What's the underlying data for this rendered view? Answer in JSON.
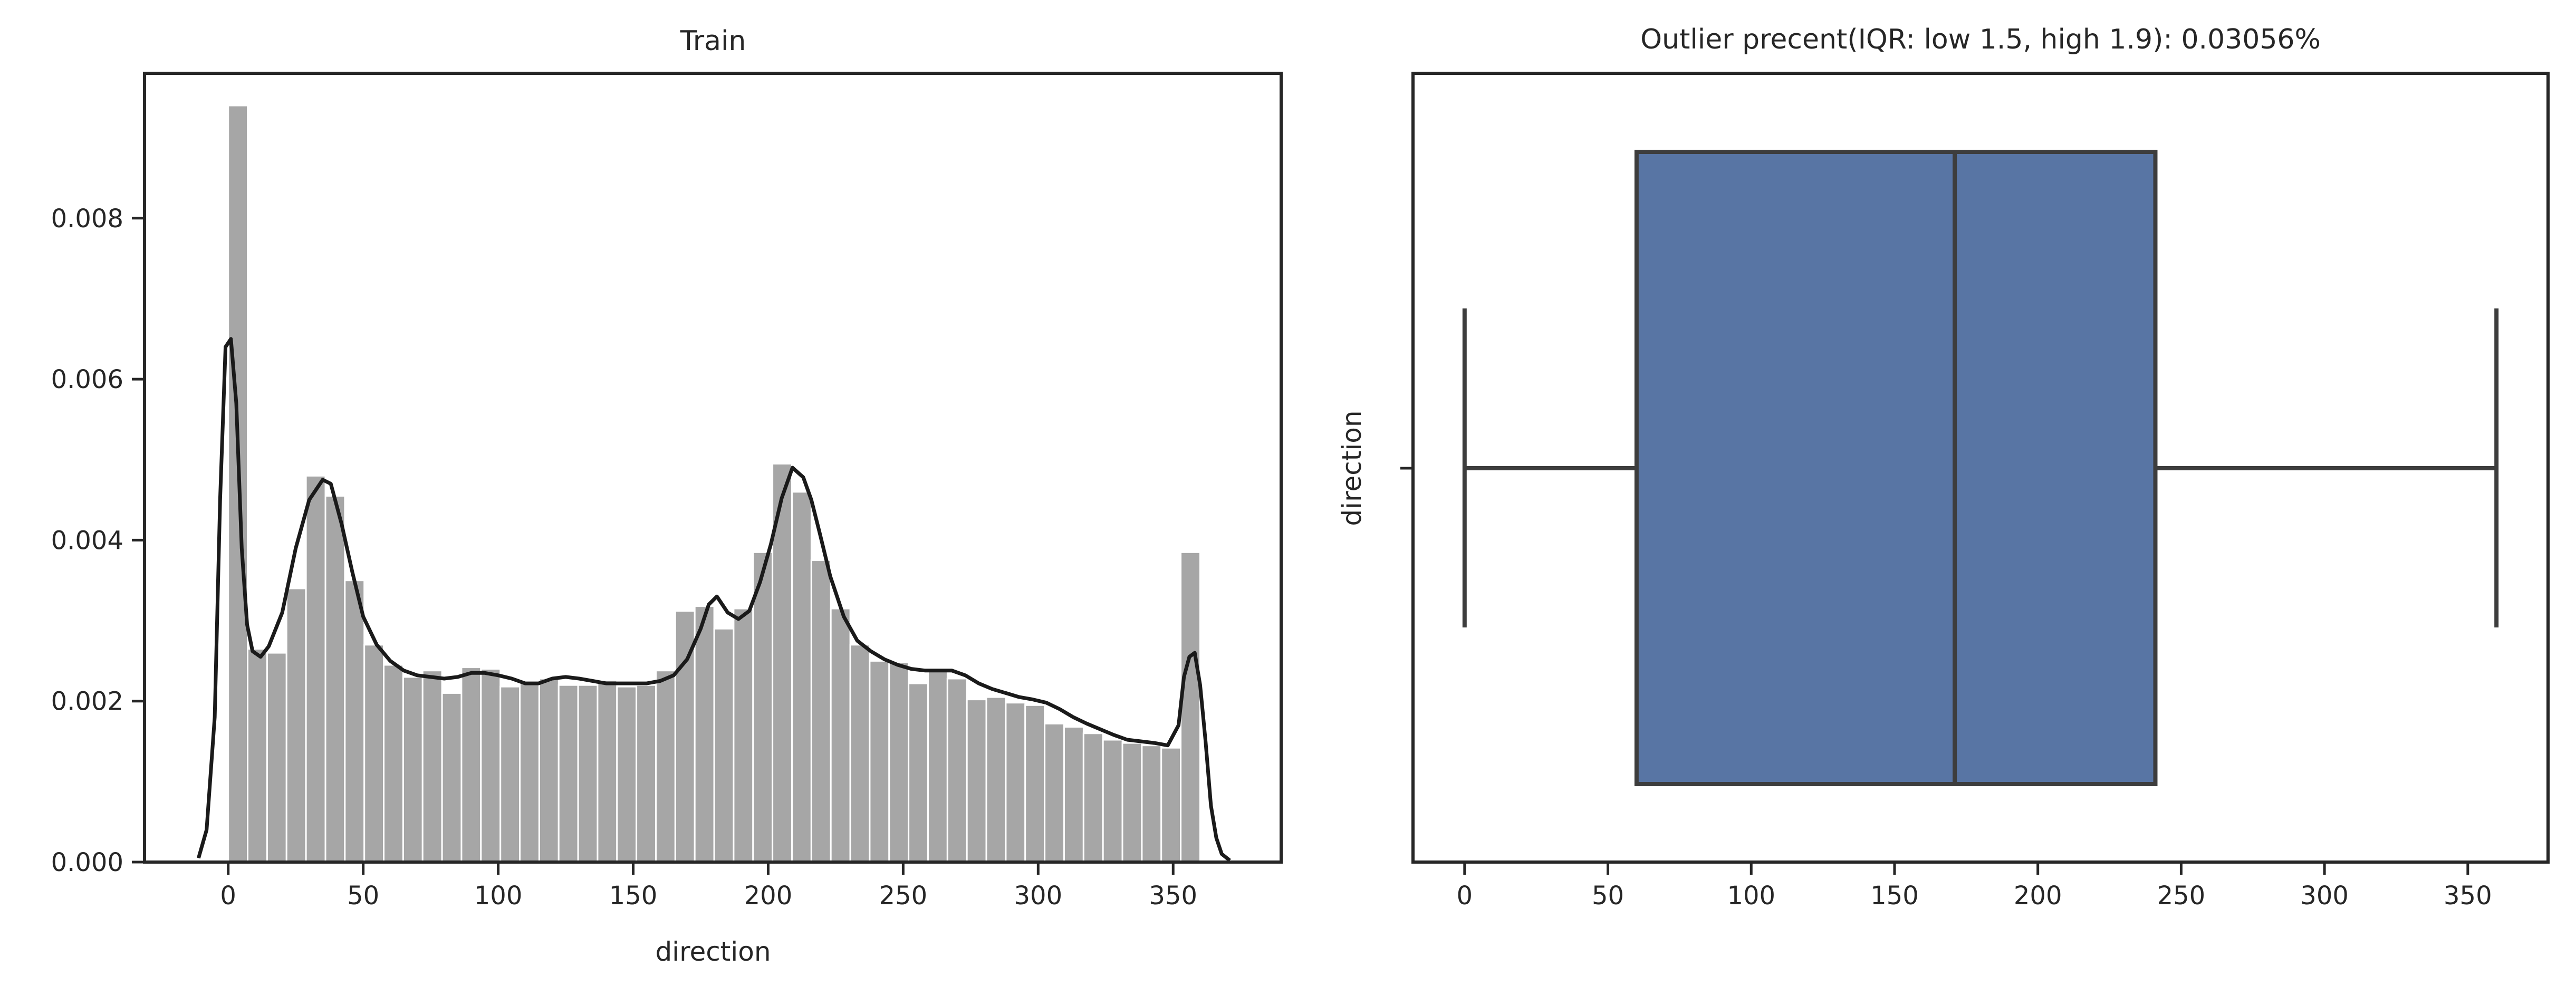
{
  "chart_data": [
    {
      "type": "bar",
      "subtype": "histogram-with-kde",
      "title": "Train",
      "xlabel": "direction",
      "ylabel": "",
      "xlim": [
        -31,
        390
      ],
      "ylim": [
        0,
        0.0098
      ],
      "xticks": [
        0,
        50,
        100,
        150,
        200,
        250,
        300,
        350
      ],
      "yticks": [
        0.0,
        0.002,
        0.004,
        0.006,
        0.008
      ],
      "ytick_labels": [
        "0.000",
        "0.002",
        "0.004",
        "0.006",
        "0.008"
      ],
      "bar_color": "#a6a6a6",
      "bin_edges": [
        0,
        7.2,
        14.4,
        21.6,
        28.8,
        36,
        43.2,
        50.4,
        57.6,
        64.8,
        72,
        79.2,
        86.4,
        93.6,
        100.8,
        108,
        115.2,
        122.4,
        129.6,
        136.8,
        144,
        151.2,
        158.4,
        165.6,
        172.8,
        180,
        187.2,
        194.4,
        201.6,
        208.8,
        216,
        223.2,
        230.4,
        237.6,
        244.8,
        252,
        259.2,
        266.4,
        273.6,
        280.8,
        288,
        295.2,
        302.4,
        309.6,
        316.8,
        324,
        331.2,
        338.4,
        345.6,
        352.8,
        360
      ],
      "values": [
        0.0094,
        0.00265,
        0.0026,
        0.0034,
        0.0048,
        0.00455,
        0.0035,
        0.0027,
        0.00245,
        0.0023,
        0.00238,
        0.0021,
        0.00242,
        0.0024,
        0.00218,
        0.00222,
        0.00228,
        0.0022,
        0.0022,
        0.00226,
        0.00218,
        0.0022,
        0.00238,
        0.00312,
        0.00318,
        0.0029,
        0.00315,
        0.00385,
        0.00495,
        0.0046,
        0.00375,
        0.00315,
        0.0027,
        0.0025,
        0.00248,
        0.00222,
        0.00238,
        0.00228,
        0.00202,
        0.00205,
        0.00198,
        0.00195,
        0.00172,
        0.00168,
        0.0016,
        0.00152,
        0.00148,
        0.00145,
        0.00142,
        0.00385
      ],
      "kde": {
        "color": "#1a1a1a",
        "x": [
          -11,
          -8,
          -5,
          -3,
          -1,
          1,
          3,
          5,
          7,
          9,
          12,
          15,
          20,
          25,
          30,
          35,
          38,
          42,
          46,
          50,
          55,
          60,
          65,
          70,
          75,
          80,
          85,
          90,
          95,
          100,
          105,
          110,
          115,
          120,
          125,
          130,
          135,
          140,
          145,
          150,
          155,
          160,
          165,
          170,
          175,
          178,
          181,
          185,
          189,
          193,
          197,
          201,
          205,
          209,
          213,
          216,
          219,
          223,
          228,
          233,
          238,
          243,
          248,
          253,
          258,
          263,
          268,
          273,
          278,
          283,
          288,
          293,
          298,
          303,
          308,
          313,
          318,
          323,
          328,
          333,
          338,
          343,
          348,
          352,
          354,
          356,
          358,
          360,
          362,
          364,
          366,
          368,
          371
        ],
        "y": [
          5e-05,
          0.0004,
          0.0018,
          0.0045,
          0.0064,
          0.0065,
          0.0057,
          0.0039,
          0.00295,
          0.00262,
          0.00255,
          0.00268,
          0.0031,
          0.0039,
          0.0045,
          0.00475,
          0.0047,
          0.0042,
          0.0036,
          0.00305,
          0.0027,
          0.0025,
          0.00238,
          0.00232,
          0.0023,
          0.00228,
          0.0023,
          0.00235,
          0.00235,
          0.00232,
          0.00228,
          0.00222,
          0.00222,
          0.00228,
          0.0023,
          0.00228,
          0.00225,
          0.00222,
          0.00222,
          0.00222,
          0.00222,
          0.00225,
          0.00232,
          0.00252,
          0.0029,
          0.0032,
          0.0033,
          0.0031,
          0.00302,
          0.00312,
          0.00348,
          0.00395,
          0.00452,
          0.0049,
          0.00478,
          0.0045,
          0.0041,
          0.00355,
          0.00305,
          0.00275,
          0.00262,
          0.00252,
          0.00245,
          0.0024,
          0.00238,
          0.00238,
          0.00238,
          0.00232,
          0.00222,
          0.00215,
          0.0021,
          0.00205,
          0.00202,
          0.00198,
          0.0019,
          0.0018,
          0.00172,
          0.00165,
          0.00158,
          0.00152,
          0.0015,
          0.00148,
          0.00145,
          0.0017,
          0.0023,
          0.00255,
          0.0026,
          0.0022,
          0.0015,
          0.0007,
          0.0003,
          0.0001,
          2e-05
        ]
      }
    },
    {
      "type": "boxplot",
      "title": "Outlier precent(IQR: low 1.5, high 1.9): 0.03056%",
      "xlabel": "",
      "ylabel": "direction",
      "xlim": [
        -18,
        378
      ],
      "xticks": [
        0,
        50,
        100,
        150,
        200,
        250,
        300,
        350
      ],
      "box_color": "#5875a4",
      "line_color": "#3d3d3d",
      "whisker_low": 0,
      "q1": 60,
      "median": 171,
      "q3": 241,
      "whisker_high": 360
    }
  ]
}
